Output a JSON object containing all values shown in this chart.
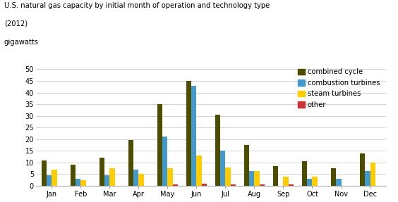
{
  "title_line1": "U.S. natural gas capacity by initial month of operation and technology type",
  "title_line2": "(2012)",
  "ylabel": "gigawatts",
  "months": [
    "Jan",
    "Feb",
    "Mar",
    "Apr",
    "May",
    "Jun",
    "Jul",
    "Aug",
    "Sep",
    "Oct",
    "Nov",
    "Dec"
  ],
  "combined_cycle": [
    11,
    9,
    12,
    19.5,
    35,
    45,
    30.5,
    17.5,
    8.5,
    10.5,
    7.5,
    14
  ],
  "combustion_turbines": [
    4.5,
    3,
    4.5,
    7,
    21,
    43,
    15,
    6.5,
    0,
    3,
    3,
    6.5
  ],
  "steam_turbines": [
    7,
    2.5,
    7.5,
    5,
    7.5,
    13,
    8,
    6.5,
    4,
    4,
    0,
    10
  ],
  "other": [
    0,
    0,
    0,
    0,
    0.5,
    0.8,
    0.5,
    0.5,
    0.5,
    0,
    0,
    0
  ],
  "colors": {
    "combined_cycle": "#4d4d00",
    "combustion_turbines": "#4499cc",
    "steam_turbines": "#ffcc00",
    "other": "#cc3333"
  },
  "ylim": [
    0,
    52
  ],
  "yticks": [
    0,
    5,
    10,
    15,
    20,
    25,
    30,
    35,
    40,
    45,
    50
  ],
  "legend_labels": [
    "combined cycle",
    "combustion turbines",
    "steam turbines",
    "other"
  ],
  "bg_color": "#ffffff",
  "grid_color": "#cccccc",
  "bar_width": 0.18,
  "figsize": [
    5.64,
    2.87
  ],
  "dpi": 100
}
